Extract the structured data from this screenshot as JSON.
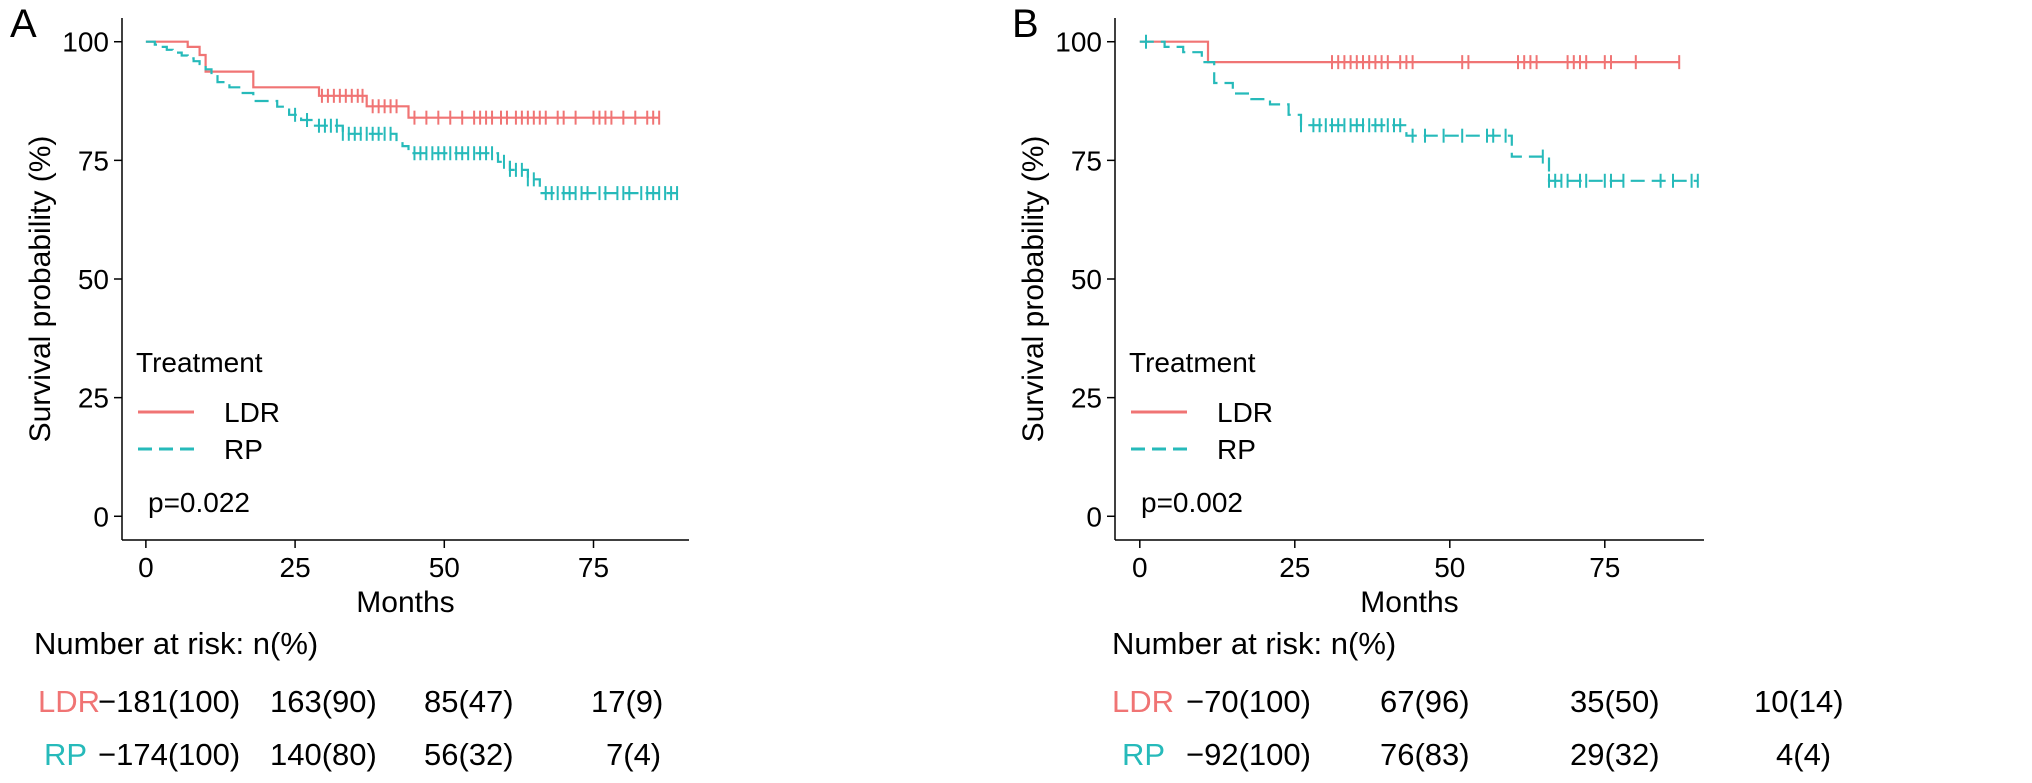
{
  "colors": {
    "LDR": "#F07474",
    "RP": "#26BABA"
  },
  "chart_data": [
    {
      "panel": "A",
      "type": "line",
      "chart_style": "kaplan-meier step curves",
      "xlabel": "Months",
      "ylabel": "Survival probability (%)",
      "xlim": [
        -4,
        91
      ],
      "ylim": [
        -5,
        105
      ],
      "x_ticks": [
        0,
        25,
        50,
        75
      ],
      "y_ticks": [
        0,
        25,
        50,
        75,
        100
      ],
      "grid": false,
      "legend": {
        "title": "Treatment",
        "entries": [
          "LDR",
          "RP"
        ],
        "position": "bottom-left"
      },
      "pvalue": "p=0.022",
      "series": [
        {
          "name": "LDR",
          "color": "#F07474",
          "dashed": false,
          "steps": [
            [
              0,
              100
            ],
            [
              7,
              98.9
            ],
            [
              9,
              97.2
            ],
            [
              10,
              93.7
            ],
            [
              18,
              90.4
            ],
            [
              29,
              88.6
            ],
            [
              37,
              86.4
            ],
            [
              44,
              84
            ],
            [
              86,
              84
            ]
          ],
          "censors": [
            29.5,
            30.5,
            31.5,
            32.5,
            33.5,
            34.5,
            35.5,
            36.3,
            38,
            39,
            40,
            41,
            42,
            45,
            47,
            49,
            51,
            53,
            55,
            56,
            57,
            58,
            59.5,
            60.5,
            62,
            63,
            64,
            65,
            66,
            67,
            69,
            70,
            72,
            75,
            76,
            77,
            78,
            80,
            82,
            84,
            85,
            86
          ]
        },
        {
          "name": "RP",
          "color": "#26BABA",
          "dashed": true,
          "steps": [
            [
              0,
              100
            ],
            [
              1.5,
              99.4
            ],
            [
              2.5,
              98.9
            ],
            [
              3.5,
              98.3
            ],
            [
              4.5,
              97.7
            ],
            [
              6,
              97.1
            ],
            [
              7,
              96.5
            ],
            [
              8,
              95.9
            ],
            [
              9,
              95.3
            ],
            [
              10,
              94.2
            ],
            [
              11,
              93
            ],
            [
              12,
              91.5
            ],
            [
              14,
              90.4
            ],
            [
              16,
              89.2
            ],
            [
              18,
              87.5
            ],
            [
              22,
              86.3
            ],
            [
              24,
              84.6
            ],
            [
              26,
              83.5
            ],
            [
              28,
              82.3
            ],
            [
              33,
              80.6
            ],
            [
              42,
              79
            ],
            [
              43,
              78
            ],
            [
              44,
              76.5
            ],
            [
              59,
              74.7
            ],
            [
              61,
              73
            ],
            [
              64,
              71
            ],
            [
              66,
              68.1
            ],
            [
              89,
              68.1
            ]
          ],
          "censors": [
            25,
            27,
            29,
            30,
            31,
            32,
            33,
            34,
            35,
            36,
            37,
            38,
            39,
            40,
            41,
            45,
            46,
            47,
            48,
            49,
            50,
            51,
            52,
            53,
            54,
            55,
            56,
            57,
            58,
            60,
            61,
            62,
            63,
            64,
            65,
            67,
            68,
            69,
            70,
            71,
            72,
            73,
            74,
            76,
            77,
            79,
            80,
            81,
            83,
            84,
            85,
            86,
            87,
            88,
            89
          ]
        }
      ],
      "risk_table": {
        "title": "Number at risk: n(%)",
        "rows": [
          {
            "group": "LDR",
            "values": [
              "−181(100)",
              "163(90)",
              "85(47)",
              "17(9)"
            ]
          },
          {
            "group": "RP",
            "values": [
              "−174(100)",
              "140(80)",
              "56(32)",
              "7(4)"
            ]
          }
        ]
      }
    },
    {
      "panel": "B",
      "type": "line",
      "chart_style": "kaplan-meier step curves",
      "xlabel": "Months",
      "ylabel": "Survival probability (%)",
      "xlim": [
        -4,
        91
      ],
      "ylim": [
        -5,
        105
      ],
      "x_ticks": [
        0,
        25,
        50,
        75
      ],
      "y_ticks": [
        0,
        25,
        50,
        75,
        100
      ],
      "grid": false,
      "legend": {
        "title": "Treatment",
        "entries": [
          "LDR",
          "RP"
        ],
        "position": "bottom-left"
      },
      "pvalue": "p=0.002",
      "series": [
        {
          "name": "LDR",
          "color": "#F07474",
          "dashed": false,
          "steps": [
            [
              0,
              100
            ],
            [
              11,
              95.7
            ],
            [
              87,
              95.7
            ]
          ],
          "censors": [
            31,
            32,
            33,
            34,
            35,
            36,
            37,
            38,
            39,
            40,
            42,
            43,
            44,
            52,
            53,
            61,
            62,
            63,
            64,
            69,
            70,
            71,
            72,
            75,
            76,
            80,
            87
          ]
        },
        {
          "name": "RP",
          "color": "#26BABA",
          "dashed": true,
          "steps": [
            [
              0,
              100
            ],
            [
              1,
              100
            ],
            [
              4,
              98.9
            ],
            [
              7,
              97.8
            ],
            [
              10,
              95.7
            ],
            [
              12,
              91.3
            ],
            [
              15,
              89.1
            ],
            [
              18,
              87.9
            ],
            [
              21,
              86.8
            ],
            [
              24,
              84.6
            ],
            [
              26,
              82.4
            ],
            [
              43,
              80.2
            ],
            [
              60,
              75.8
            ],
            [
              66,
              70.7
            ],
            [
              90,
              70.7
            ]
          ],
          "censors": [
            1,
            26,
            28,
            29,
            30,
            31,
            32,
            33,
            34,
            35,
            36,
            37,
            38,
            39,
            40,
            41,
            42,
            44,
            46,
            49,
            52,
            56,
            57,
            59,
            65,
            66,
            67,
            68,
            69,
            71,
            72,
            75,
            76,
            78,
            84,
            86,
            89,
            90
          ]
        }
      ],
      "risk_table": {
        "title": "Number at risk: n(%)",
        "rows": [
          {
            "group": "LDR",
            "values": [
              "−70(100)",
              "67(96)",
              "35(50)",
              "10(14)"
            ]
          },
          {
            "group": "RP",
            "values": [
              "−92(100)",
              "76(83)",
              "29(32)",
              "4(4)"
            ]
          }
        ]
      }
    }
  ]
}
